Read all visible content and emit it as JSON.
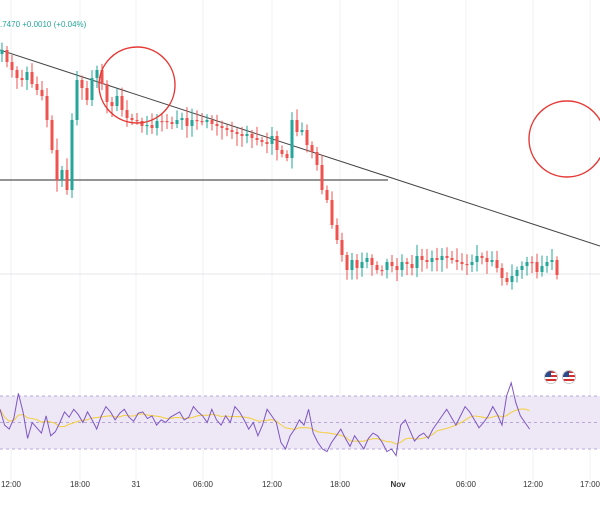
{
  "header": {
    "ticker_text": ".7470  +0.0010 (+0.04%)"
  },
  "colors": {
    "bull": "#26a69a",
    "bear": "#ef5350",
    "trendline": "#444444",
    "support": "#555555",
    "circle": "#e53935",
    "box_fill": "#e6f4dc",
    "box_border": "#4f8ef7",
    "rsi_band": "#ede7f6",
    "rsi_line": "#7e57c2",
    "rsi_ma": "#f4d04a"
  },
  "indicators": {
    "event_icons": [
      "us-flag-icon",
      "us-flag-icon"
    ]
  },
  "chart_data": {
    "type": "candlestick",
    "x_tick_labels": [
      "12:00",
      "18:00",
      "31",
      "06:00",
      "12:00",
      "18:00",
      "Nov",
      "06:00",
      "12:00",
      "17:00"
    ],
    "price": {
      "closes": [
        50,
        62,
        70,
        78,
        80,
        72,
        84,
        90,
        96,
        120,
        150,
        180,
        170,
        190,
        120,
        80,
        88,
        100,
        78,
        70,
        84,
        102,
        106,
        96,
        110,
        118,
        120,
        121,
        126,
        125,
        128,
        121,
        121,
        122,
        124,
        120,
        118,
        126,
        120,
        121,
        122,
        120,
        124,
        126,
        128,
        130,
        132,
        134,
        136,
        134,
        138,
        140,
        142,
        144,
        136,
        150,
        154,
        158,
        120,
        132,
        130,
        145,
        152,
        165,
        190,
        200,
        225,
        240,
        255,
        270,
        260,
        268,
        262,
        258,
        265,
        270,
        270,
        262,
        266,
        270,
        262,
        264,
        268,
        256,
        260,
        262,
        258,
        260,
        256,
        258,
        260,
        262,
        264,
        265,
        262,
        256,
        258,
        262,
        260,
        268,
        278,
        282,
        276,
        270,
        266,
        262,
        262,
        272,
        266,
        262,
        260,
        275
      ],
      "support_level": 180,
      "range_box": {
        "x_start": 139,
        "x_end": 249,
        "top": 233,
        "bottom": 295
      },
      "trendline": {
        "x_start": 0,
        "y_start": 50,
        "x_end": 249,
        "y_end": 246
      },
      "highlight_circles": [
        {
          "x": 27,
          "y": 85
        },
        {
          "x": 113,
          "y": 139
        }
      ]
    },
    "rsi": {
      "values": [
        60,
        48,
        45,
        53,
        72,
        58,
        38,
        50,
        46,
        42,
        55,
        40,
        43,
        50,
        58,
        54,
        60,
        56,
        50,
        58,
        52,
        45,
        55,
        62,
        58,
        52,
        57,
        60,
        54,
        51,
        57,
        58,
        53,
        55,
        48,
        52,
        50,
        54,
        56,
        58,
        52,
        54,
        62,
        58,
        55,
        50,
        60,
        52,
        48,
        55,
        50,
        62,
        58,
        52,
        45,
        50,
        40,
        48,
        60,
        55,
        50,
        35,
        30,
        40,
        45,
        52,
        48,
        60,
        42,
        35,
        30,
        28,
        35,
        40,
        45,
        38,
        32,
        40,
        35,
        30,
        38,
        42,
        40,
        35,
        28,
        30,
        25,
        48,
        52,
        44,
        36,
        40,
        42,
        38,
        45,
        50,
        55,
        60,
        54,
        48,
        55,
        62,
        58,
        52,
        46,
        50,
        55,
        62,
        56,
        48,
        70,
        80,
        65,
        55,
        50,
        45
      ],
      "upper": 70,
      "lower": 30
    }
  }
}
